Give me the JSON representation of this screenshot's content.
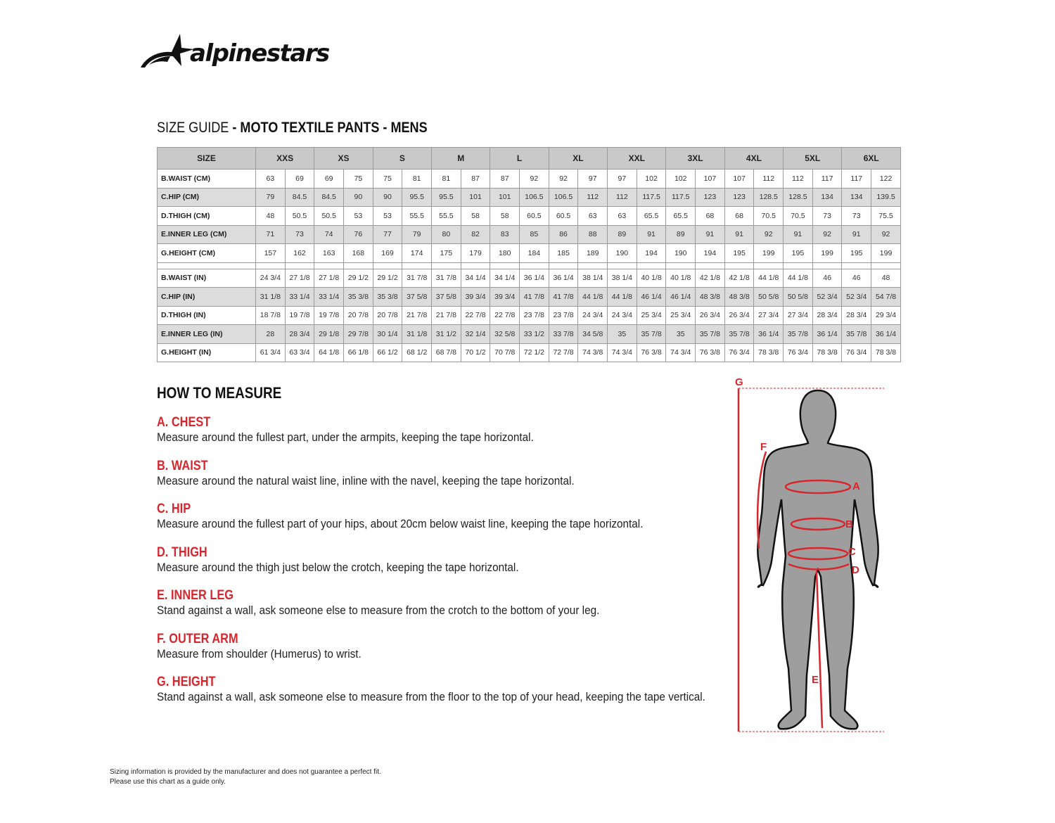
{
  "brand": {
    "logo_text": "alpinestars"
  },
  "title": {
    "prefix": "SIZE GUIDE",
    "suffix": " - MOTO TEXTILE PANTS - MENS"
  },
  "table": {
    "size_header": "SIZE",
    "sizes": [
      "XXS",
      "XS",
      "S",
      "M",
      "L",
      "XL",
      "XXL",
      "3XL",
      "4XL",
      "5XL",
      "6XL"
    ],
    "cm_rows": [
      {
        "label": "B.WAIST (CM)",
        "values": [
          "63",
          "69",
          "69",
          "75",
          "75",
          "81",
          "81",
          "87",
          "87",
          "92",
          "92",
          "97",
          "97",
          "102",
          "102",
          "107",
          "107",
          "112",
          "112",
          "117",
          "117",
          "122"
        ]
      },
      {
        "label": "C.HIP (CM)",
        "values": [
          "79",
          "84.5",
          "84.5",
          "90",
          "90",
          "95.5",
          "95.5",
          "101",
          "101",
          "106.5",
          "106.5",
          "112",
          "112",
          "117.5",
          "117.5",
          "123",
          "123",
          "128.5",
          "128.5",
          "134",
          "134",
          "139.5"
        ]
      },
      {
        "label": "D.THIGH (CM)",
        "values": [
          "48",
          "50.5",
          "50.5",
          "53",
          "53",
          "55.5",
          "55.5",
          "58",
          "58",
          "60.5",
          "60.5",
          "63",
          "63",
          "65.5",
          "65.5",
          "68",
          "68",
          "70.5",
          "70.5",
          "73",
          "73",
          "75.5"
        ]
      },
      {
        "label": "E.INNER LEG (CM)",
        "values": [
          "71",
          "73",
          "74",
          "76",
          "77",
          "79",
          "80",
          "82",
          "83",
          "85",
          "86",
          "88",
          "89",
          "91",
          "89",
          "91",
          "91",
          "92",
          "91",
          "92",
          "91",
          "92"
        ]
      },
      {
        "label": "G.HEIGHT (CM)",
        "values": [
          "157",
          "162",
          "163",
          "168",
          "169",
          "174",
          "175",
          "179",
          "180",
          "184",
          "185",
          "189",
          "190",
          "194",
          "190",
          "194",
          "195",
          "199",
          "195",
          "199",
          "195",
          "199"
        ]
      }
    ],
    "in_rows": [
      {
        "label": "B.WAIST (IN)",
        "values": [
          "24 3/4",
          "27 1/8",
          "27 1/8",
          "29 1/2",
          "29 1/2",
          "31 7/8",
          "31 7/8",
          "34 1/4",
          "34 1/4",
          "36 1/4",
          "36 1/4",
          "38 1/4",
          "38 1/4",
          "40 1/8",
          "40 1/8",
          "42 1/8",
          "42 1/8",
          "44 1/8",
          "44 1/8",
          "46",
          "46",
          "48"
        ]
      },
      {
        "label": "C.HIP (IN)",
        "values": [
          "31 1/8",
          "33 1/4",
          "33 1/4",
          "35 3/8",
          "35 3/8",
          "37 5/8",
          "37 5/8",
          "39 3/4",
          "39 3/4",
          "41 7/8",
          "41 7/8",
          "44 1/8",
          "44 1/8",
          "46 1/4",
          "46 1/4",
          "48 3/8",
          "48 3/8",
          "50 5/8",
          "50 5/8",
          "52 3/4",
          "52 3/4",
          "54 7/8"
        ]
      },
      {
        "label": "D.THIGH (IN)",
        "values": [
          "18 7/8",
          "19 7/8",
          "19 7/8",
          "20 7/8",
          "20 7/8",
          "21 7/8",
          "21 7/8",
          "22 7/8",
          "22 7/8",
          "23 7/8",
          "23 7/8",
          "24 3/4",
          "24 3/4",
          "25 3/4",
          "25 3/4",
          "26 3/4",
          "26 3/4",
          "27 3/4",
          "27 3/4",
          "28 3/4",
          "28 3/4",
          "29 3/4"
        ]
      },
      {
        "label": "E.INNER LEG (IN)",
        "values": [
          "28",
          "28 3/4",
          "29 1/8",
          "29 7/8",
          "30 1/4",
          "31 1/8",
          "31 1/2",
          "32 1/4",
          "32 5/8",
          "33 1/2",
          "33 7/8",
          "34 5/8",
          "35",
          "35 7/8",
          "35",
          "35 7/8",
          "35 7/8",
          "36 1/4",
          "35 7/8",
          "36 1/4",
          "35 7/8",
          "36 1/4"
        ]
      },
      {
        "label": "G.HEIGHT (IN)",
        "values": [
          "61 3/4",
          "63 3/4",
          "64 1/8",
          "66 1/8",
          "66 1/2",
          "68 1/2",
          "68 7/8",
          "70 1/2",
          "70 7/8",
          "72 1/2",
          "72 7/8",
          "74 3/8",
          "74 3/4",
          "76 3/8",
          "74 3/4",
          "76 3/8",
          "76 3/4",
          "78 3/8",
          "76 3/4",
          "78 3/8",
          "76 3/4",
          "78 3/8"
        ]
      }
    ]
  },
  "how_to_measure": {
    "heading": "HOW TO MEASURE",
    "steps": [
      {
        "title": "A. CHEST",
        "text": "Measure around the fullest part, under the armpits, keeping the tape horizontal."
      },
      {
        "title": "B. WAIST",
        "text": "Measure around the natural waist line, inline with the navel, keeping the tape horizontal."
      },
      {
        "title": "C. HIP",
        "text": "Measure around the fullest part of your hips, about 20cm below waist line, keeping the tape horizontal."
      },
      {
        "title": "D. THIGH",
        "text": "Measure around the thigh just below the crotch, keeping the tape horizontal."
      },
      {
        "title": "E. INNER LEG",
        "text": "Stand against a wall, ask someone else to measure from the crotch to the bottom of your leg."
      },
      {
        "title": "F. OUTER ARM",
        "text": "Measure from shoulder (Humerus) to wrist."
      },
      {
        "title": "G. HEIGHT",
        "text": "Stand against a wall, ask someone else to measure from the floor to the top of your head, keeping the tape vertical."
      }
    ]
  },
  "figure": {
    "labels": {
      "a": "A",
      "b": "B",
      "c": "C",
      "d": "D",
      "e": "E",
      "f": "F",
      "g": "G"
    },
    "accent": "#d7262d",
    "body": "#9e9e9e"
  },
  "footer": {
    "line1": "Sizing information is provided by the manufacturer and does not guarantee a perfect fit.",
    "line2": "Please use this chart as a guide only."
  }
}
